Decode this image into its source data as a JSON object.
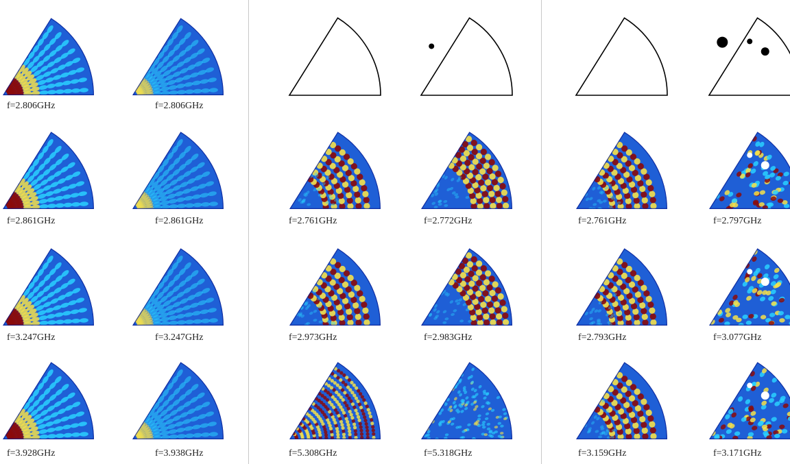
{
  "panels": [
    {
      "columns": [
        {
          "cells": [
            {
              "frequency_label": "f=2.806GHz",
              "type": "field",
              "pattern": "regular",
              "scatterers": []
            },
            {
              "frequency_label": "f=2.861GHz",
              "type": "field",
              "pattern": "regular",
              "scatterers": []
            },
            {
              "frequency_label": "f=3.247GHz",
              "type": "field",
              "pattern": "regular",
              "scatterers": []
            },
            {
              "frequency_label": "f=3.928GHz",
              "type": "field",
              "pattern": "regular",
              "scatterers": []
            }
          ]
        },
        {
          "cells": [
            {
              "frequency_label": "f=2.806GHz",
              "type": "field",
              "pattern": "regular-faint",
              "scatterers": []
            },
            {
              "frequency_label": "f=2.861GHz",
              "type": "field",
              "pattern": "regular-faint",
              "scatterers": []
            },
            {
              "frequency_label": "f=3.247GHz",
              "type": "field",
              "pattern": "regular-faint",
              "scatterers": []
            },
            {
              "frequency_label": "f=3.938GHz",
              "type": "field",
              "pattern": "regular-faint",
              "scatterers": []
            }
          ]
        }
      ]
    },
    {
      "columns": [
        {
          "cells": [
            {
              "frequency_label": "",
              "type": "outline",
              "pattern": "none",
              "scatterers": []
            },
            {
              "frequency_label": "f=2.761GHz",
              "type": "field",
              "pattern": "band",
              "scatterers": []
            },
            {
              "frequency_label": "f=2.973GHz",
              "type": "field",
              "pattern": "band",
              "scatterers": []
            },
            {
              "frequency_label": "f=5.308GHz",
              "type": "field",
              "pattern": "dense",
              "scatterers": []
            }
          ]
        },
        {
          "cells": [
            {
              "frequency_label": "",
              "type": "outline",
              "pattern": "none",
              "scatterers": [
                {
                  "r": 0.55,
                  "theta_deg": 78,
                  "size": 4
                }
              ]
            },
            {
              "frequency_label": "f=2.772GHz",
              "type": "field",
              "pattern": "outer-band",
              "scatterers": []
            },
            {
              "frequency_label": "f=2.983GHz",
              "type": "field",
              "pattern": "outer-band",
              "scatterers": []
            },
            {
              "frequency_label": "f=5.318GHz",
              "type": "field",
              "pattern": "chaotic-faint",
              "scatterers": []
            }
          ]
        }
      ]
    },
    {
      "columns": [
        {
          "cells": [
            {
              "frequency_label": "",
              "type": "outline",
              "pattern": "none",
              "scatterers": []
            },
            {
              "frequency_label": "f=2.761GHz",
              "type": "field",
              "pattern": "band",
              "scatterers": []
            },
            {
              "frequency_label": "f=2.793GHz",
              "type": "field",
              "pattern": "band",
              "scatterers": []
            },
            {
              "frequency_label": "f=3.159GHz",
              "type": "field",
              "pattern": "band",
              "scatterers": []
            }
          ]
        },
        {
          "cells": [
            {
              "frequency_label": "",
              "type": "outline",
              "pattern": "none",
              "scatterers": [
                {
                  "r": 0.6,
                  "theta_deg": 76,
                  "size": 8
                },
                {
                  "r": 0.74,
                  "theta_deg": 53,
                  "size": 4
                },
                {
                  "r": 0.78,
                  "theta_deg": 38,
                  "size": 6
                }
              ]
            },
            {
              "frequency_label": "f=2.797GHz",
              "type": "field",
              "pattern": "chaotic",
              "scatterers": [
                {
                  "r": 0.6,
                  "theta_deg": 76,
                  "size": 8
                },
                {
                  "r": 0.74,
                  "theta_deg": 53,
                  "size": 4
                },
                {
                  "r": 0.78,
                  "theta_deg": 38,
                  "size": 6
                }
              ]
            },
            {
              "frequency_label": "f=3.077GHz",
              "type": "field",
              "pattern": "chaotic",
              "scatterers": [
                {
                  "r": 0.6,
                  "theta_deg": 76,
                  "size": 8
                },
                {
                  "r": 0.74,
                  "theta_deg": 53,
                  "size": 4
                },
                {
                  "r": 0.78,
                  "theta_deg": 38,
                  "size": 6
                }
              ]
            },
            {
              "frequency_label": "f=3.171GHz",
              "type": "field",
              "pattern": "chaotic",
              "scatterers": [
                {
                  "r": 0.6,
                  "theta_deg": 76,
                  "size": 8
                },
                {
                  "r": 0.74,
                  "theta_deg": 53,
                  "size": 4
                },
                {
                  "r": 0.78,
                  "theta_deg": 38,
                  "size": 6
                }
              ]
            }
          ]
        }
      ]
    }
  ],
  "colors": {
    "background_field": "#1f5fd6",
    "field_dark": "#0a1a8c",
    "field_mid": "#2ad0ff",
    "field_high": "#f5e14a",
    "field_peak": "#8b0a0a",
    "outline": "#000000",
    "scatterer_outline": "#000000",
    "scatterer_field": "#ffffff"
  }
}
